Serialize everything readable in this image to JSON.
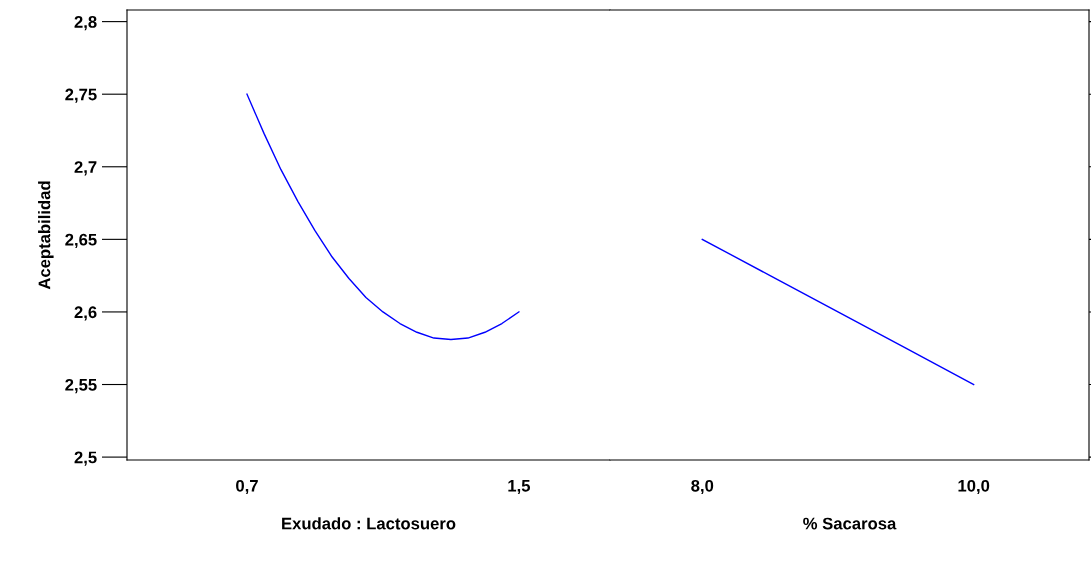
{
  "chart_data": [
    {
      "type": "line",
      "xlabel": "Exudado : Lactosuero",
      "ylabel": "Aceptabilidad",
      "xlim": [
        0.347,
        1.768
      ],
      "xticks": [
        {
          "value": 0.7,
          "label": "0,7"
        },
        {
          "value": 1.5,
          "label": "1,5"
        }
      ],
      "ylim": [
        2.498,
        2.808
      ],
      "yticks": [
        {
          "value": 2.5,
          "label": "2,5"
        },
        {
          "value": 2.55,
          "label": "2,55"
        },
        {
          "value": 2.6,
          "label": "2,6"
        },
        {
          "value": 2.65,
          "label": "2,65"
        },
        {
          "value": 2.7,
          "label": "2,7"
        },
        {
          "value": 2.75,
          "label": "2,75"
        },
        {
          "value": 2.8,
          "label": "2,8"
        }
      ],
      "series": [
        {
          "color": "#0000ff",
          "x": [
            0.7,
            0.75,
            0.8,
            0.85,
            0.9,
            0.95,
            1.0,
            1.05,
            1.1,
            1.15,
            1.2,
            1.25,
            1.3,
            1.35,
            1.4,
            1.45,
            1.5
          ],
          "values": [
            2.75,
            2.723,
            2.698,
            2.676,
            2.656,
            2.638,
            2.623,
            2.61,
            2.6,
            2.592,
            2.586,
            2.582,
            2.581,
            2.582,
            2.586,
            2.592,
            2.6
          ]
        }
      ]
    },
    {
      "type": "line",
      "xlabel": "% Sacarosa",
      "tick_labels": "x",
      "xlim": [
        7.32,
        10.85
      ],
      "xticks": [
        {
          "value": 8.0,
          "label": "8,0"
        },
        {
          "value": 10.0,
          "label": "10,0"
        }
      ],
      "ylim": [
        2.498,
        2.808
      ],
      "yticks": [
        2.5,
        2.55,
        2.6,
        2.65,
        2.7,
        2.75,
        2.8
      ],
      "series": [
        {
          "color": "#0000ff",
          "x": [
            8.0,
            8.5,
            9.0,
            9.5,
            10.0
          ],
          "values": [
            2.65,
            2.625,
            2.6,
            2.575,
            2.55
          ]
        }
      ]
    }
  ]
}
